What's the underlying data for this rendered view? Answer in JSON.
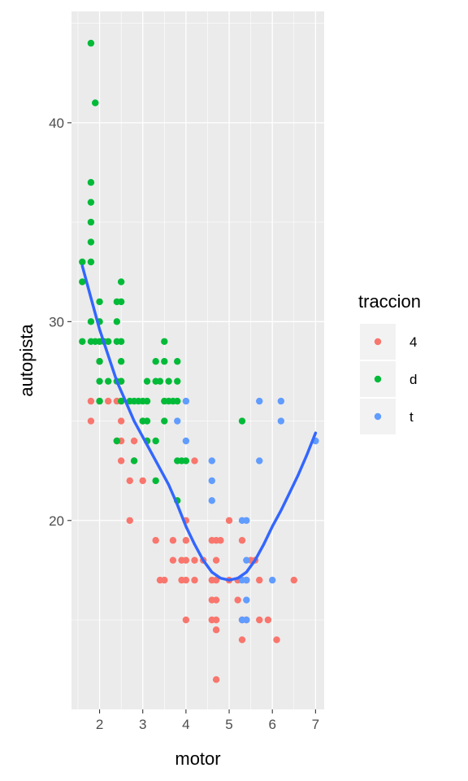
{
  "chart_data": {
    "type": "scatter",
    "xlabel": "motor",
    "ylabel": "autopista",
    "x_ticks": [
      2,
      3,
      4,
      5,
      6,
      7
    ],
    "y_ticks": [
      20,
      30,
      40
    ],
    "xlim": [
      1.35,
      7.2
    ],
    "ylim": [
      10.5,
      45.6
    ],
    "grid": true,
    "legend": {
      "title": "traccion",
      "position": "right"
    },
    "series": [
      {
        "name": "4",
        "color": "#F8766D",
        "points": [
          [
            1.8,
            26
          ],
          [
            1.8,
            25
          ],
          [
            2.0,
            28
          ],
          [
            2.0,
            26
          ],
          [
            2.2,
            26
          ],
          [
            2.4,
            24
          ],
          [
            2.4,
            26
          ],
          [
            2.5,
            25
          ],
          [
            2.5,
            24
          ],
          [
            2.5,
            23
          ],
          [
            2.5,
            27
          ],
          [
            2.5,
            26
          ],
          [
            2.7,
            22
          ],
          [
            2.7,
            20
          ],
          [
            2.8,
            23
          ],
          [
            2.8,
            24
          ],
          [
            3.0,
            22
          ],
          [
            3.0,
            25
          ],
          [
            3.1,
            24
          ],
          [
            3.3,
            19
          ],
          [
            3.4,
            17
          ],
          [
            3.5,
            17
          ],
          [
            3.7,
            18
          ],
          [
            3.7,
            19
          ],
          [
            3.9,
            17
          ],
          [
            3.9,
            18
          ],
          [
            4.0,
            20
          ],
          [
            4.0,
            15
          ],
          [
            4.0,
            17
          ],
          [
            4.0,
            19
          ],
          [
            4.0,
            18
          ],
          [
            4.2,
            23
          ],
          [
            4.2,
            17
          ],
          [
            4.2,
            18
          ],
          [
            4.4,
            18
          ],
          [
            4.6,
            19
          ],
          [
            4.6,
            17
          ],
          [
            4.6,
            16
          ],
          [
            4.7,
            19
          ],
          [
            4.7,
            17
          ],
          [
            4.7,
            16
          ],
          [
            4.7,
            15
          ],
          [
            4.7,
            12
          ],
          [
            4.7,
            18
          ],
          [
            4.8,
            19
          ],
          [
            5.0,
            17
          ],
          [
            5.2,
            17
          ],
          [
            5.2,
            16
          ],
          [
            5.3,
            15
          ],
          [
            5.3,
            19
          ],
          [
            5.3,
            14
          ],
          [
            5.4,
            15
          ],
          [
            5.4,
            17
          ],
          [
            5.6,
            18
          ],
          [
            5.7,
            17
          ],
          [
            5.7,
            15
          ],
          [
            5.9,
            15
          ],
          [
            6.1,
            14
          ],
          [
            6.5,
            17
          ],
          [
            5.0,
            20
          ],
          [
            4.6,
            15
          ],
          [
            4.7,
            14.5
          ],
          [
            5.4,
            17
          ],
          [
            5.5,
            18
          ]
        ]
      },
      {
        "name": "d",
        "color": "#00BA38",
        "points": [
          [
            1.6,
            33
          ],
          [
            1.6,
            32
          ],
          [
            1.6,
            29
          ],
          [
            1.8,
            44
          ],
          [
            1.9,
            41
          ],
          [
            1.8,
            37
          ],
          [
            1.8,
            36
          ],
          [
            1.8,
            35
          ],
          [
            1.8,
            34
          ],
          [
            1.8,
            33
          ],
          [
            1.8,
            29
          ],
          [
            1.8,
            30
          ],
          [
            1.9,
            29
          ],
          [
            2.0,
            31
          ],
          [
            2.0,
            30
          ],
          [
            2.0,
            29
          ],
          [
            2.0,
            28
          ],
          [
            2.0,
            27
          ],
          [
            2.0,
            26
          ],
          [
            2.1,
            29
          ],
          [
            2.2,
            29
          ],
          [
            2.2,
            27
          ],
          [
            2.4,
            31
          ],
          [
            2.4,
            30
          ],
          [
            2.4,
            29
          ],
          [
            2.4,
            27
          ],
          [
            2.4,
            24
          ],
          [
            2.5,
            32
          ],
          [
            2.5,
            31
          ],
          [
            2.5,
            29
          ],
          [
            2.5,
            28
          ],
          [
            2.5,
            27
          ],
          [
            2.5,
            26
          ],
          [
            2.7,
            26
          ],
          [
            2.8,
            26
          ],
          [
            2.8,
            23
          ],
          [
            2.9,
            26
          ],
          [
            3.0,
            26
          ],
          [
            3.0,
            25
          ],
          [
            3.1,
            27
          ],
          [
            3.1,
            26
          ],
          [
            3.1,
            25
          ],
          [
            3.1,
            24
          ],
          [
            3.3,
            28
          ],
          [
            3.3,
            27
          ],
          [
            3.3,
            24
          ],
          [
            3.3,
            22
          ],
          [
            3.4,
            27
          ],
          [
            3.5,
            29
          ],
          [
            3.5,
            28
          ],
          [
            3.5,
            26
          ],
          [
            3.5,
            25
          ],
          [
            3.6,
            26
          ],
          [
            3.6,
            27
          ],
          [
            3.8,
            28
          ],
          [
            3.8,
            27
          ],
          [
            3.8,
            26
          ],
          [
            3.8,
            23
          ],
          [
            3.8,
            21
          ],
          [
            3.9,
            23
          ],
          [
            4.0,
            23
          ],
          [
            5.3,
            25
          ],
          [
            3.7,
            26
          ]
        ]
      },
      {
        "name": "t",
        "color": "#619CFF",
        "points": [
          [
            3.8,
            25
          ],
          [
            4.0,
            26
          ],
          [
            4.0,
            24
          ],
          [
            4.6,
            23
          ],
          [
            4.6,
            22
          ],
          [
            4.6,
            21
          ],
          [
            5.3,
            20
          ],
          [
            5.4,
            20
          ],
          [
            5.4,
            18
          ],
          [
            5.4,
            17
          ],
          [
            5.4,
            16
          ],
          [
            5.4,
            15
          ],
          [
            5.7,
            26
          ],
          [
            5.7,
            23
          ],
          [
            6.0,
            17
          ],
          [
            6.2,
            26
          ],
          [
            6.2,
            25
          ],
          [
            7.0,
            24
          ],
          [
            5.3,
            17
          ],
          [
            5.3,
            15
          ]
        ]
      }
    ],
    "smooth": {
      "color": "#3366FF",
      "x": [
        1.6,
        1.8,
        2.0,
        2.2,
        2.4,
        2.6,
        2.8,
        3.0,
        3.2,
        3.4,
        3.6,
        3.8,
        4.0,
        4.2,
        4.4,
        4.6,
        4.8,
        5.0,
        5.2,
        5.4,
        5.6,
        5.8,
        6.0,
        6.2,
        6.4,
        6.6,
        6.8,
        7.0
      ],
      "y": [
        32.8,
        31.2,
        29.6,
        28.3,
        27.0,
        26.0,
        25.0,
        24.2,
        23.4,
        22.6,
        21.8,
        20.8,
        19.7,
        18.8,
        18.0,
        17.4,
        17.1,
        17.0,
        17.1,
        17.4,
        18.0,
        18.8,
        19.7,
        20.5,
        21.4,
        22.3,
        23.3,
        24.4
      ]
    }
  }
}
